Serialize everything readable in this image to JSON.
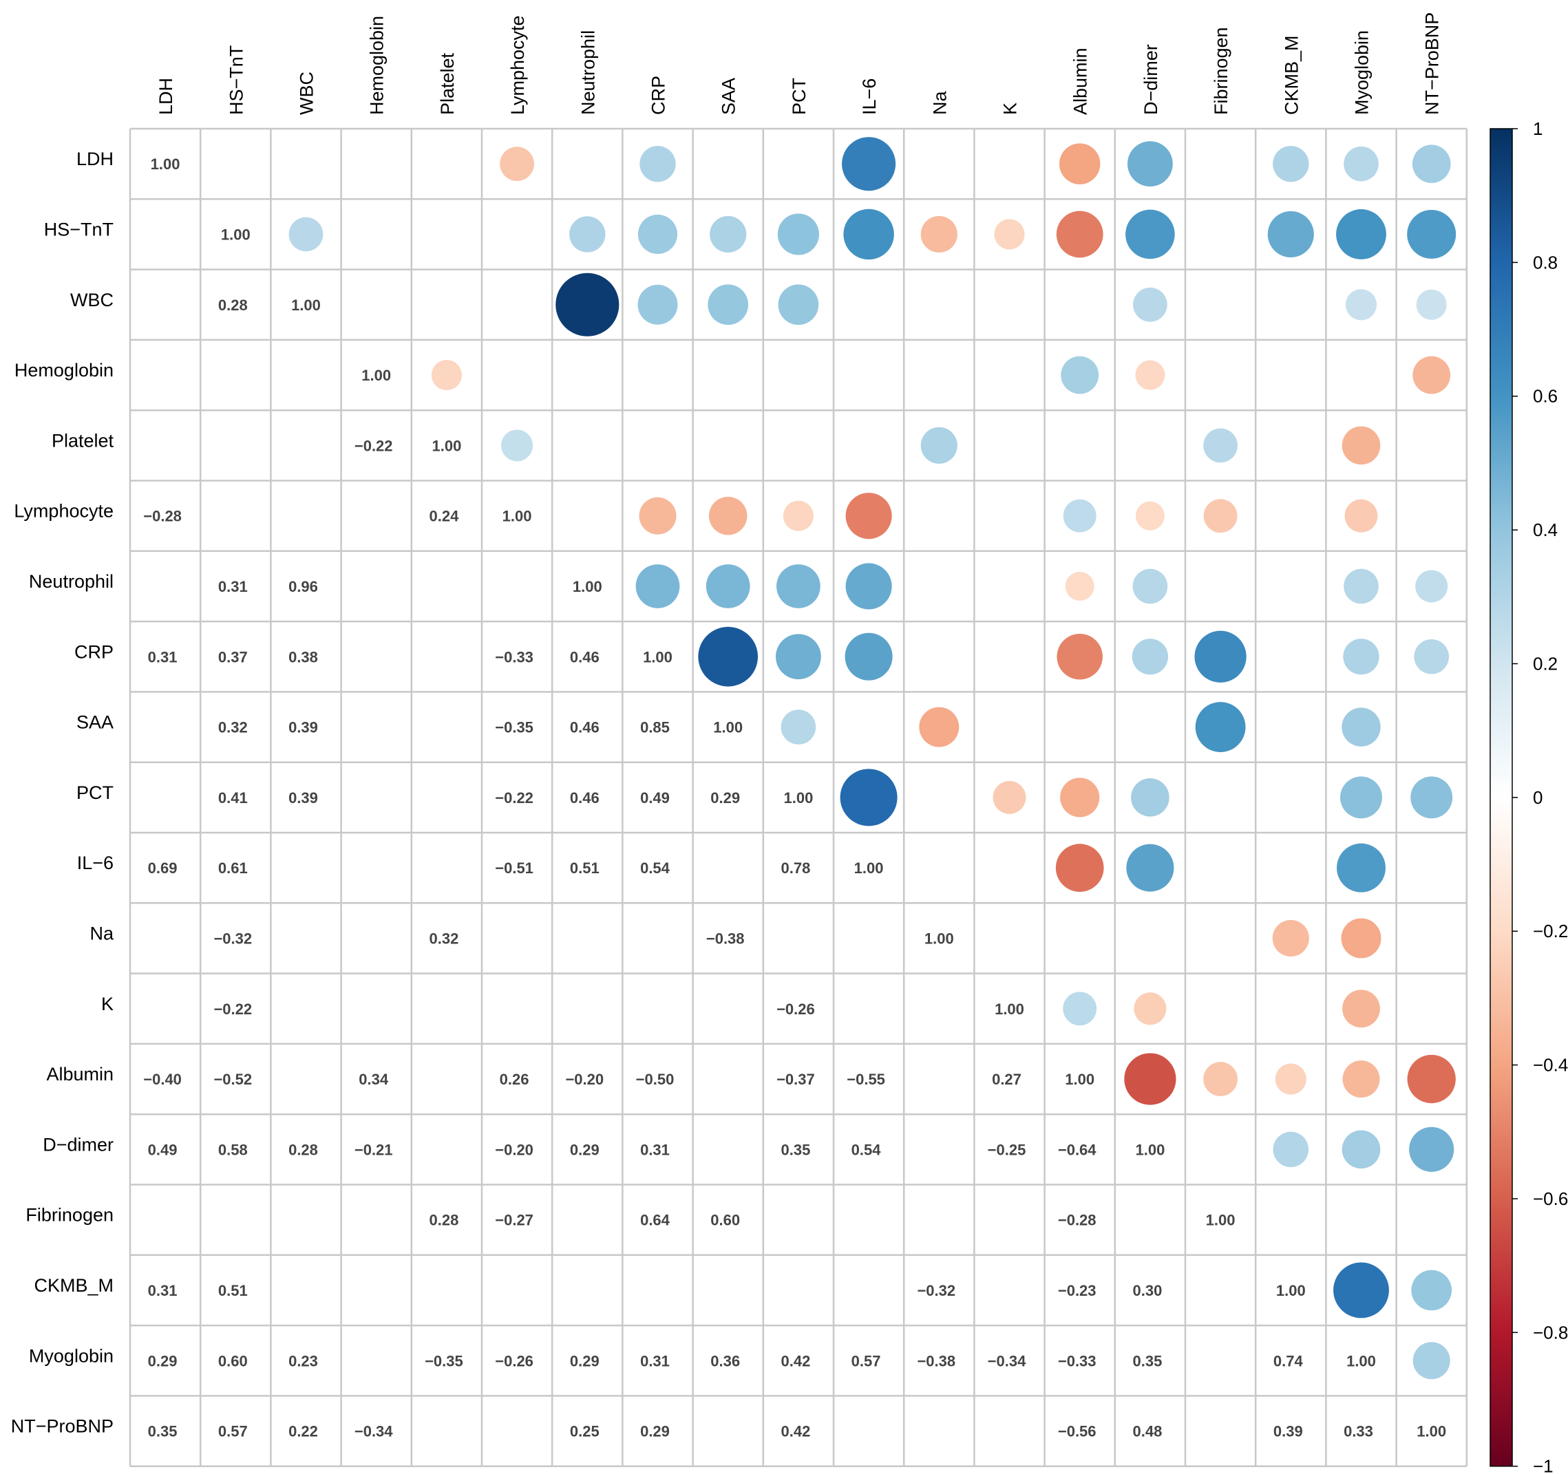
{
  "chart_data": {
    "type": "heatmap",
    "style": "mixed correlation plot: circles in upper triangle, numbers in lower triangle",
    "variables": [
      "LDH",
      "HS−TnT",
      "WBC",
      "Hemoglobin",
      "Platelet",
      "Lymphocyte",
      "Neutrophil",
      "CRP",
      "SAA",
      "PCT",
      "IL−6",
      "Na",
      "K",
      "Albumin",
      "D−dimer",
      "Fibrinogen",
      "CKMB_M",
      "Myoglobin",
      "NT−ProBNP"
    ],
    "matrix": [
      [
        1.0,
        0.0,
        0.0,
        0.0,
        0.0,
        -0.28,
        0.0,
        0.31,
        0.0,
        0.0,
        0.69,
        0.0,
        0.0,
        -0.4,
        0.49,
        0.0,
        0.31,
        0.29,
        0.35
      ],
      [
        0.0,
        1.0,
        0.28,
        0.0,
        0.0,
        0.0,
        0.31,
        0.37,
        0.32,
        0.41,
        0.61,
        -0.32,
        -0.22,
        -0.52,
        0.58,
        0.0,
        0.51,
        0.6,
        0.57
      ],
      [
        0.0,
        0.28,
        1.0,
        0.0,
        0.0,
        0.0,
        0.96,
        0.38,
        0.39,
        0.39,
        0.0,
        0.0,
        0.0,
        0.0,
        0.28,
        0.0,
        0.0,
        0.23,
        0.22
      ],
      [
        0.0,
        0.0,
        0.0,
        1.0,
        -0.22,
        0.0,
        0.0,
        0.0,
        0.0,
        0.0,
        0.0,
        0.0,
        0.0,
        0.34,
        -0.21,
        0.0,
        0.0,
        0.0,
        -0.34
      ],
      [
        0.0,
        0.0,
        0.0,
        -0.22,
        1.0,
        0.24,
        0.0,
        0.0,
        0.0,
        0.0,
        0.0,
        0.32,
        0.0,
        0.0,
        0.0,
        0.28,
        0.0,
        -0.35,
        0.0
      ],
      [
        -0.28,
        0.0,
        0.0,
        0.0,
        0.24,
        1.0,
        0.0,
        -0.33,
        -0.35,
        -0.22,
        -0.51,
        0.0,
        0.0,
        0.26,
        -0.2,
        -0.27,
        0.0,
        -0.26,
        0.0
      ],
      [
        0.0,
        0.31,
        0.96,
        0.0,
        0.0,
        0.0,
        1.0,
        0.46,
        0.46,
        0.46,
        0.51,
        0.0,
        0.0,
        -0.2,
        0.29,
        0.0,
        0.0,
        0.29,
        0.25
      ],
      [
        0.31,
        0.37,
        0.38,
        0.0,
        0.0,
        -0.33,
        0.46,
        1.0,
        0.85,
        0.49,
        0.54,
        0.0,
        0.0,
        -0.5,
        0.31,
        0.64,
        0.0,
        0.31,
        0.29
      ],
      [
        0.0,
        0.32,
        0.39,
        0.0,
        0.0,
        -0.35,
        0.46,
        0.85,
        1.0,
        0.29,
        0.0,
        -0.38,
        0.0,
        0.0,
        0.0,
        0.6,
        0.0,
        0.36,
        0.0
      ],
      [
        0.0,
        0.41,
        0.39,
        0.0,
        0.0,
        -0.22,
        0.46,
        0.49,
        0.29,
        1.0,
        0.78,
        0.0,
        -0.26,
        -0.37,
        0.35,
        0.0,
        0.0,
        0.42,
        0.42
      ],
      [
        0.69,
        0.61,
        0.0,
        0.0,
        0.0,
        -0.51,
        0.51,
        0.54,
        0.0,
        0.78,
        1.0,
        0.0,
        0.0,
        -0.55,
        0.54,
        0.0,
        0.0,
        0.57,
        0.0
      ],
      [
        0.0,
        -0.32,
        0.0,
        0.0,
        0.32,
        0.0,
        0.0,
        0.0,
        -0.38,
        0.0,
        0.0,
        1.0,
        0.0,
        0.0,
        0.0,
        0.0,
        -0.32,
        -0.38,
        0.0
      ],
      [
        0.0,
        -0.22,
        0.0,
        0.0,
        0.0,
        0.0,
        0.0,
        0.0,
        0.0,
        -0.26,
        0.0,
        0.0,
        1.0,
        0.27,
        -0.25,
        0.0,
        0.0,
        -0.34,
        0.0
      ],
      [
        -0.4,
        -0.52,
        0.0,
        0.34,
        0.0,
        0.26,
        -0.2,
        -0.5,
        0.0,
        -0.37,
        -0.55,
        0.0,
        0.27,
        1.0,
        -0.64,
        -0.28,
        -0.23,
        -0.33,
        -0.56
      ],
      [
        0.49,
        0.58,
        0.28,
        -0.21,
        0.0,
        -0.2,
        0.29,
        0.31,
        0.0,
        0.35,
        0.54,
        0.0,
        -0.25,
        -0.64,
        1.0,
        0.0,
        0.3,
        0.35,
        0.48
      ],
      [
        0.0,
        0.0,
        0.0,
        0.0,
        0.28,
        -0.27,
        0.0,
        0.64,
        0.6,
        0.0,
        0.0,
        0.0,
        0.0,
        -0.28,
        0.0,
        1.0,
        0.0,
        0.0,
        0.0
      ],
      [
        0.31,
        0.51,
        0.0,
        0.0,
        0.0,
        0.0,
        0.0,
        0.0,
        0.0,
        0.0,
        0.0,
        -0.32,
        0.0,
        -0.23,
        0.3,
        0.0,
        1.0,
        0.74,
        0.39
      ],
      [
        0.29,
        0.6,
        0.23,
        0.0,
        -0.35,
        -0.26,
        0.29,
        0.31,
        0.36,
        0.42,
        0.57,
        -0.38,
        -0.34,
        -0.33,
        0.35,
        0.0,
        0.74,
        1.0,
        0.33
      ],
      [
        0.35,
        0.57,
        0.22,
        -0.34,
        0.0,
        0.0,
        0.25,
        0.29,
        0.0,
        0.42,
        0.0,
        0.0,
        0.0,
        -0.56,
        0.48,
        0.0,
        0.39,
        0.33,
        1.0
      ]
    ],
    "colorbar": {
      "min": -1,
      "max": 1,
      "ticks": [
        1,
        0.8,
        0.6,
        0.4,
        0.2,
        0,
        -0.2,
        -0.4,
        -0.6,
        -0.8,
        -1
      ],
      "tick_labels": [
        "1",
        "0.8",
        "0.6",
        "0.4",
        "0.2",
        "0",
        "−0.2",
        "−0.4",
        "−0.6",
        "−0.8",
        "−1"
      ]
    },
    "colormap": [
      "#67001F",
      "#B2182B",
      "#D6604D",
      "#F4A582",
      "#FDDBC7",
      "#FFFFFF",
      "#D1E5F0",
      "#92C5DE",
      "#4393C3",
      "#2166AC",
      "#053061"
    ],
    "grid_color": "#c8c8c8",
    "text_color": "#444444"
  }
}
